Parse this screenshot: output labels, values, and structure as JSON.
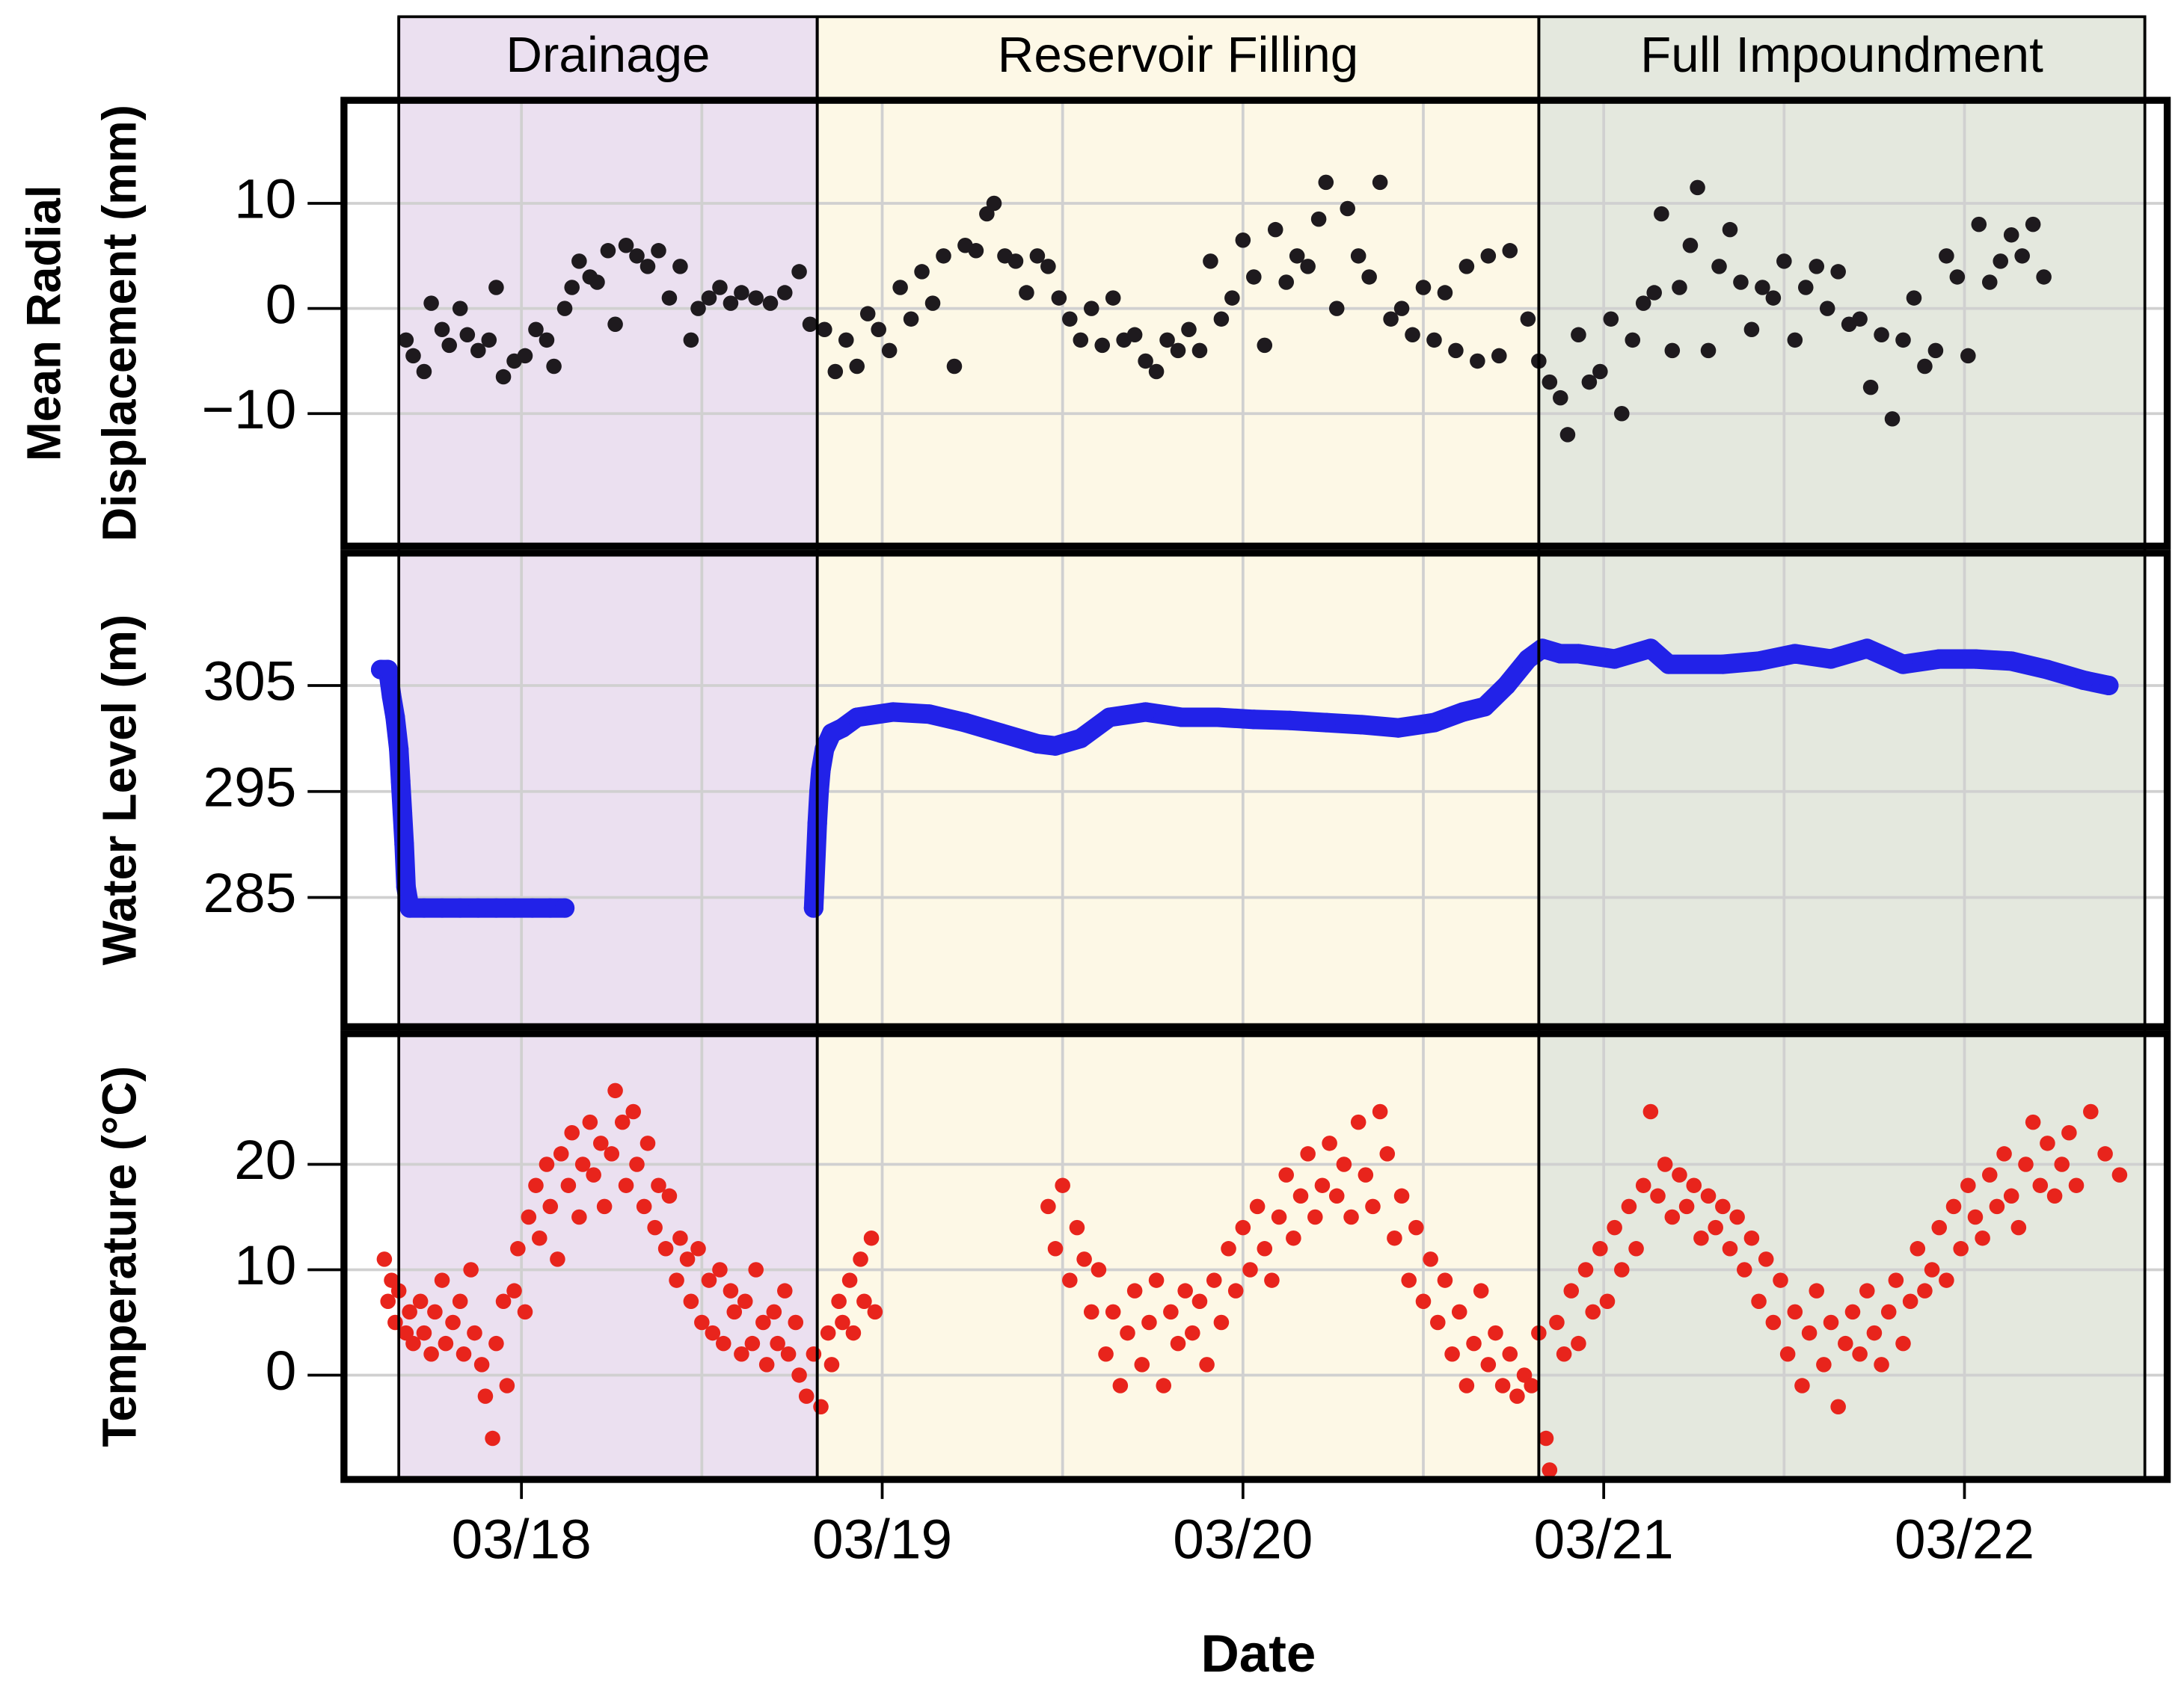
{
  "chart_data": [
    {
      "type": "scatter",
      "ylabel": [
        "Mean Radial",
        "Displacement (mm)"
      ],
      "ylim": [
        -22.6,
        19.8
      ],
      "yticks": [
        {
          "value": -10,
          "label": "−10"
        },
        0,
        10
      ],
      "grid": true,
      "color": "#1e1a1e",
      "phases": [
        {
          "label": "Drainage",
          "start": 2017.83,
          "end": 2018.99,
          "color": "#ebe0f0"
        },
        {
          "label": "Reservoir Filling",
          "start": 2018.99,
          "end": 2020.99,
          "color": "#fdf8e6"
        },
        {
          "label": "Full Impoundment",
          "start": 2020.99,
          "end": 2022.67,
          "color": "#e4e8de"
        }
      ],
      "x": [
        2017.85,
        2017.87,
        2017.9,
        2017.92,
        2017.95,
        2017.97,
        2018.0,
        2018.02,
        2018.05,
        2018.08,
        2018.1,
        2018.12,
        2018.15,
        2018.18,
        2018.21,
        2018.24,
        2018.26,
        2018.29,
        2018.31,
        2018.33,
        2018.36,
        2018.38,
        2018.41,
        2018.43,
        2018.46,
        2018.49,
        2018.52,
        2018.55,
        2018.58,
        2018.61,
        2018.64,
        2018.66,
        2018.69,
        2018.72,
        2018.75,
        2018.78,
        2018.82,
        2018.86,
        2018.9,
        2018.94,
        2018.97,
        2019.01,
        2019.04,
        2019.07,
        2019.1,
        2019.13,
        2019.16,
        2019.19,
        2019.22,
        2019.25,
        2019.28,
        2019.31,
        2019.34,
        2019.37,
        2019.4,
        2019.43,
        2019.46,
        2019.48,
        2019.51,
        2019.54,
        2019.57,
        2019.6,
        2019.63,
        2019.66,
        2019.69,
        2019.72,
        2019.75,
        2019.78,
        2019.81,
        2019.84,
        2019.87,
        2019.9,
        2019.93,
        2019.96,
        2019.99,
        2020.02,
        2020.05,
        2020.08,
        2020.11,
        2020.14,
        2020.17,
        2020.2,
        2020.23,
        2020.26,
        2020.29,
        2020.32,
        2020.35,
        2020.38,
        2020.4,
        2020.43,
        2020.46,
        2020.49,
        2020.52,
        2020.55,
        2020.58,
        2020.61,
        2020.64,
        2020.67,
        2020.7,
        2020.73,
        2020.76,
        2020.79,
        2020.82,
        2020.85,
        2020.88,
        2020.91,
        2020.96,
        2020.99,
        2021.02,
        2021.05,
        2021.07,
        2021.1,
        2021.13,
        2021.16,
        2021.19,
        2021.22,
        2021.25,
        2021.28,
        2021.31,
        2021.33,
        2021.36,
        2021.38,
        2021.41,
        2021.43,
        2021.46,
        2021.49,
        2021.52,
        2021.55,
        2021.58,
        2021.61,
        2021.64,
        2021.67,
        2021.7,
        2021.73,
        2021.76,
        2021.79,
        2021.82,
        2021.85,
        2021.88,
        2021.91,
        2021.94,
        2021.97,
        2022.0,
        2022.03,
        2022.06,
        2022.09,
        2022.12,
        2022.15,
        2022.18,
        2022.21,
        2022.24,
        2022.27,
        2022.3,
        2022.33,
        2022.36,
        2022.39
      ],
      "values": [
        -3,
        -4.5,
        -6,
        0.5,
        -2,
        -3.5,
        0,
        -2.5,
        -4,
        -3,
        2,
        -6.5,
        -5,
        -4.5,
        -2,
        -3,
        -5.5,
        0,
        2,
        4.5,
        3,
        2.5,
        5.5,
        -1.5,
        6,
        5,
        4,
        5.5,
        1,
        4,
        -3,
        0,
        1,
        2,
        0.5,
        1.5,
        1,
        0.5,
        1.5,
        3.5,
        -1.5,
        -2,
        -6,
        -3,
        -5.5,
        -0.5,
        -2,
        -4,
        2,
        -1,
        3.5,
        0.5,
        5,
        -5.5,
        6,
        5.5,
        9,
        10,
        5,
        4.5,
        1.5,
        5,
        4,
        1,
        -1,
        -3,
        0,
        -3.5,
        1,
        -3,
        -2.5,
        -5,
        -6,
        -3,
        -4,
        -2,
        -4,
        4.5,
        -1,
        1,
        6.5,
        3,
        -3.5,
        7.5,
        2.5,
        5,
        4,
        8.5,
        12,
        0,
        9.5,
        5,
        3,
        12,
        -1,
        0,
        -2.5,
        2,
        -3,
        1.5,
        -4,
        4,
        -5,
        5,
        -4.5,
        5.5,
        -1,
        -5,
        -7,
        -8.5,
        -12,
        -2.5,
        -7,
        -6,
        -1,
        -10,
        -3,
        0.5,
        1.5,
        9,
        -4,
        2,
        6,
        11.5,
        -4,
        4,
        7.5,
        2.5,
        -2,
        2,
        1,
        4.5,
        -3,
        2,
        4,
        0,
        3.5,
        -1.5,
        -1,
        -7.5,
        -2.5,
        -10.5,
        -3,
        1,
        -5.5,
        -4,
        5,
        3,
        -4.5,
        8,
        2.5,
        4.5,
        7,
        5,
        8,
        3
      ]
    },
    {
      "type": "scatter",
      "connected": true,
      "ylabel": [
        "Water Level (m)"
      ],
      "ylim": [
        272.8,
        317.5
      ],
      "yticks": [
        285,
        295,
        305
      ],
      "grid": true,
      "color": "#2222e8",
      "x": [
        2017.78,
        2017.8,
        2017.81,
        2017.82,
        2017.83,
        2017.835,
        2017.84,
        2017.845,
        2017.85,
        2017.86,
        2017.9,
        2017.95,
        2018.0,
        2018.05,
        2018.1,
        2018.15,
        2018.2,
        2018.25,
        2018.29,
        null,
        2018.98,
        2018.99,
        2018.995,
        2019.0,
        2019.01,
        2019.03,
        2019.06,
        2019.1,
        2019.2,
        2019.3,
        2019.4,
        2019.5,
        2019.6,
        2019.65,
        2019.72,
        2019.8,
        2019.9,
        2020.0,
        2020.1,
        2020.2,
        2020.3,
        2020.4,
        2020.5,
        2020.6,
        2020.7,
        2020.78,
        2020.84,
        2020.9,
        2020.96,
        2021.0,
        2021.05,
        2021.1,
        2021.2,
        2021.3,
        2021.35,
        2021.5,
        2021.6,
        2021.7,
        2021.8,
        2021.9,
        2022.0,
        2022.1,
        2022.2,
        2022.3,
        2022.4,
        2022.5,
        2022.57
      ],
      "values": [
        306.5,
        306.5,
        304,
        302,
        299,
        296,
        293,
        290,
        286,
        284,
        284,
        284,
        284,
        284,
        284,
        284,
        284,
        284,
        284,
        null,
        284,
        292,
        295,
        297,
        299,
        300.5,
        301,
        302,
        302.5,
        302.3,
        301.5,
        300.5,
        299.5,
        299.3,
        300,
        302,
        302.5,
        302,
        302,
        301.8,
        301.7,
        301.5,
        301.3,
        301,
        301.5,
        302.5,
        303,
        305,
        307.5,
        308.5,
        308,
        308,
        307.5,
        308.5,
        307,
        307,
        307.3,
        308,
        307.5,
        308.5,
        307,
        307.5,
        307.5,
        307.3,
        306.5,
        305.5,
        305
      ]
    },
    {
      "type": "scatter",
      "ylabel": [
        "Temperature (°C)"
      ],
      "ylim": [
        -9.9,
        32.4
      ],
      "yticks": [
        0,
        10,
        20
      ],
      "grid": true,
      "color": "#e8241c",
      "xlim": [
        2017.678,
        2022.732
      ],
      "xlabel": "Date",
      "xticks": [
        {
          "value": 2018.17,
          "label": "03/18"
        },
        {
          "value": 2019.17,
          "label": "03/19"
        },
        {
          "value": 2020.17,
          "label": "03/20"
        },
        {
          "value": 2021.17,
          "label": "03/21"
        },
        {
          "value": 2022.17,
          "label": "03/22"
        }
      ],
      "xgrid": [
        2018.17,
        2018.67,
        2019.17,
        2019.67,
        2020.17,
        2020.67,
        2021.17,
        2021.67,
        2022.17
      ],
      "x": [
        2017.79,
        2017.8,
        2017.81,
        2017.82,
        2017.83,
        2017.85,
        2017.86,
        2017.87,
        2017.89,
        2017.9,
        2017.92,
        2017.93,
        2017.95,
        2017.96,
        2017.98,
        2018.0,
        2018.01,
        2018.03,
        2018.04,
        2018.06,
        2018.07,
        2018.09,
        2018.1,
        2018.12,
        2018.13,
        2018.15,
        2018.16,
        2018.18,
        2018.19,
        2018.21,
        2018.22,
        2018.24,
        2018.25,
        2018.27,
        2018.28,
        2018.3,
        2018.31,
        2018.33,
        2018.34,
        2018.36,
        2018.37,
        2018.39,
        2018.4,
        2018.42,
        2018.43,
        2018.45,
        2018.46,
        2018.48,
        2018.49,
        2018.51,
        2018.52,
        2018.54,
        2018.55,
        2018.57,
        2018.58,
        2018.6,
        2018.61,
        2018.63,
        2018.64,
        2018.66,
        2018.67,
        2018.69,
        2018.7,
        2018.72,
        2018.73,
        2018.75,
        2018.76,
        2018.78,
        2018.79,
        2018.81,
        2018.82,
        2018.84,
        2018.85,
        2018.87,
        2018.88,
        2018.9,
        2018.91,
        2018.93,
        2018.94,
        2018.96,
        2018.98,
        2019.0,
        2019.02,
        2019.03,
        2019.05,
        2019.06,
        2019.08,
        2019.09,
        2019.11,
        2019.12,
        2019.14,
        2019.15,
        2019.63,
        2019.65,
        2019.67,
        2019.69,
        2019.71,
        2019.73,
        2019.75,
        2019.77,
        2019.79,
        2019.81,
        2019.83,
        2019.85,
        2019.87,
        2019.89,
        2019.91,
        2019.93,
        2019.95,
        2019.97,
        2019.99,
        2020.01,
        2020.03,
        2020.05,
        2020.07,
        2020.09,
        2020.11,
        2020.13,
        2020.15,
        2020.17,
        2020.19,
        2020.21,
        2020.23,
        2020.25,
        2020.27,
        2020.29,
        2020.31,
        2020.33,
        2020.35,
        2020.37,
        2020.39,
        2020.41,
        2020.43,
        2020.45,
        2020.47,
        2020.49,
        2020.51,
        2020.53,
        2020.55,
        2020.57,
        2020.59,
        2020.61,
        2020.63,
        2020.65,
        2020.67,
        2020.69,
        2020.71,
        2020.73,
        2020.75,
        2020.77,
        2020.79,
        2020.81,
        2020.83,
        2020.85,
        2020.87,
        2020.89,
        2020.91,
        2020.93,
        2020.95,
        2020.97,
        2020.99,
        2021.01,
        2021.02,
        2021.04,
        2021.06,
        2021.08,
        2021.1,
        2021.12,
        2021.14,
        2021.16,
        2021.18,
        2021.2,
        2021.22,
        2021.24,
        2021.26,
        2021.28,
        2021.3,
        2021.32,
        2021.34,
        2021.36,
        2021.38,
        2021.4,
        2021.42,
        2021.44,
        2021.46,
        2021.48,
        2021.5,
        2021.52,
        2021.54,
        2021.56,
        2021.58,
        2021.6,
        2021.62,
        2021.64,
        2021.66,
        2021.68,
        2021.7,
        2021.72,
        2021.74,
        2021.76,
        2021.78,
        2021.8,
        2021.82,
        2021.84,
        2021.86,
        2021.88,
        2021.9,
        2021.92,
        2021.94,
        2021.96,
        2021.98,
        2022.0,
        2022.02,
        2022.04,
        2022.06,
        2022.08,
        2022.1,
        2022.12,
        2022.14,
        2022.16,
        2022.18,
        2022.2,
        2022.22,
        2022.24,
        2022.26,
        2022.28,
        2022.3,
        2022.32,
        2022.34,
        2022.36,
        2022.38,
        2022.4,
        2022.42,
        2022.44,
        2022.46,
        2022.48,
        2022.52,
        2022.56,
        2022.6
      ],
      "values": [
        11,
        7,
        9,
        5,
        8,
        4,
        6,
        3,
        7,
        4,
        2,
        6,
        9,
        3,
        5,
        7,
        2,
        10,
        4,
        1,
        -2,
        -6,
        3,
        7,
        -1,
        8,
        12,
        6,
        15,
        18,
        13,
        20,
        16,
        11,
        21,
        18,
        23,
        15,
        20,
        24,
        19,
        22,
        16,
        21,
        27,
        24,
        18,
        25,
        20,
        16,
        22,
        14,
        18,
        12,
        17,
        9,
        13,
        11,
        7,
        12,
        5,
        9,
        4,
        10,
        3,
        8,
        6,
        2,
        7,
        3,
        10,
        5,
        1,
        6,
        3,
        8,
        2,
        5,
        0,
        -2,
        2,
        -3,
        4,
        1,
        7,
        5,
        9,
        4,
        11,
        7,
        13,
        6,
        16,
        12,
        18,
        9,
        14,
        11,
        6,
        10,
        2,
        6,
        -1,
        4,
        8,
        1,
        5,
        9,
        -1,
        6,
        3,
        8,
        4,
        7,
        1,
        9,
        5,
        12,
        8,
        14,
        10,
        16,
        12,
        9,
        15,
        19,
        13,
        17,
        21,
        15,
        18,
        22,
        17,
        20,
        15,
        24,
        19,
        16,
        25,
        21,
        13,
        17,
        9,
        14,
        7,
        11,
        5,
        9,
        2,
        6,
        -1,
        3,
        8,
        1,
        4,
        -1,
        2,
        -2,
        0,
        -1,
        4,
        -6,
        -9,
        5,
        2,
        8,
        3,
        10,
        6,
        12,
        7,
        14,
        10,
        16,
        12,
        18,
        25,
        17,
        20,
        15,
        19,
        16,
        18,
        13,
        17,
        14,
        16,
        12,
        15,
        10,
        13,
        7,
        11,
        5,
        9,
        2,
        6,
        -1,
        4,
        8,
        1,
        5,
        -3,
        3,
        6,
        2,
        8,
        4,
        1,
        6,
        9,
        3,
        7,
        12,
        8,
        10,
        14,
        9,
        16,
        12,
        18,
        15,
        13,
        19,
        16,
        21,
        17,
        14,
        20,
        24,
        18,
        22,
        17,
        20,
        23,
        18,
        25,
        21,
        19
      ]
    }
  ]
}
